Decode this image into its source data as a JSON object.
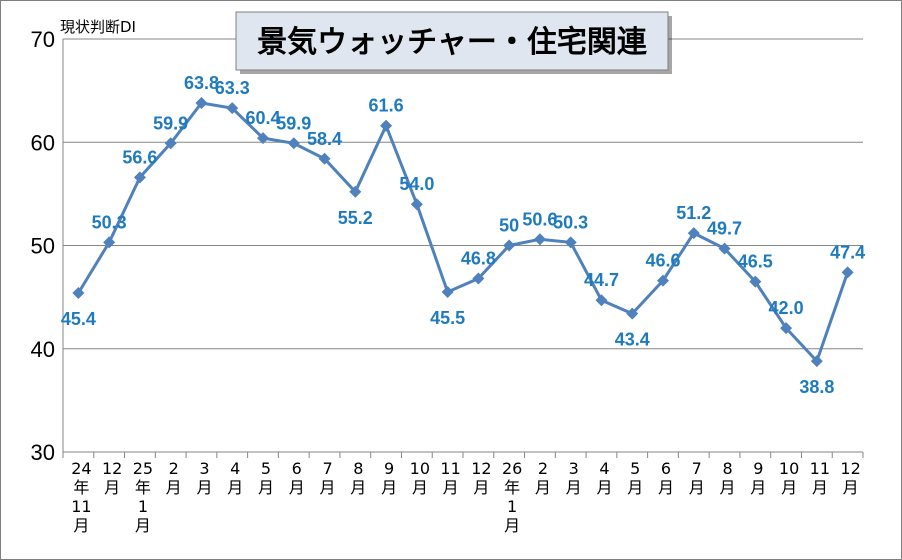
{
  "chart_data": {
    "type": "line",
    "title": "景気ウォッチャー・住宅関連",
    "ylabel": "現状判断DI",
    "xlabel": "",
    "ylim": [
      30,
      70
    ],
    "yticks": [
      30,
      40,
      50,
      60,
      70
    ],
    "grid": true,
    "categories": [
      "24年11月",
      "12月",
      "25年1月",
      "2月",
      "3月",
      "4月",
      "5月",
      "6月",
      "7月",
      "8月",
      "9月",
      "10月",
      "11月",
      "12月",
      "26年1月",
      "2月",
      "3月",
      "4月",
      "5月",
      "6月",
      "7月",
      "8月",
      "9月",
      "10月",
      "11月",
      "12月"
    ],
    "series": [
      {
        "values": [
          45.4,
          50.3,
          56.6,
          59.9,
          63.8,
          63.3,
          60.4,
          59.9,
          58.4,
          55.2,
          61.6,
          54.0,
          45.5,
          46.8,
          50,
          50.6,
          50.3,
          44.7,
          43.4,
          46.6,
          51.2,
          49.7,
          46.5,
          42.0,
          38.8,
          47.4
        ],
        "labels": [
          "45.4",
          "50.3",
          "56.6",
          "59.9",
          "63.8",
          "63.3",
          "60.4",
          "59.9",
          "58.4",
          "55.2",
          "61.6",
          "54.0",
          "45.5",
          "46.8",
          "50",
          "50.6",
          "50.3",
          "44.7",
          "43.4",
          "46.6",
          "51.2",
          "49.7",
          "46.5",
          "42.0",
          "38.8",
          "47.4"
        ]
      }
    ],
    "colors": {
      "line": "#4f81bd",
      "marker": "#4f81bd",
      "label": "#1f7bbf",
      "grid": "#868686",
      "title_bg": "#dfe6ef"
    }
  }
}
